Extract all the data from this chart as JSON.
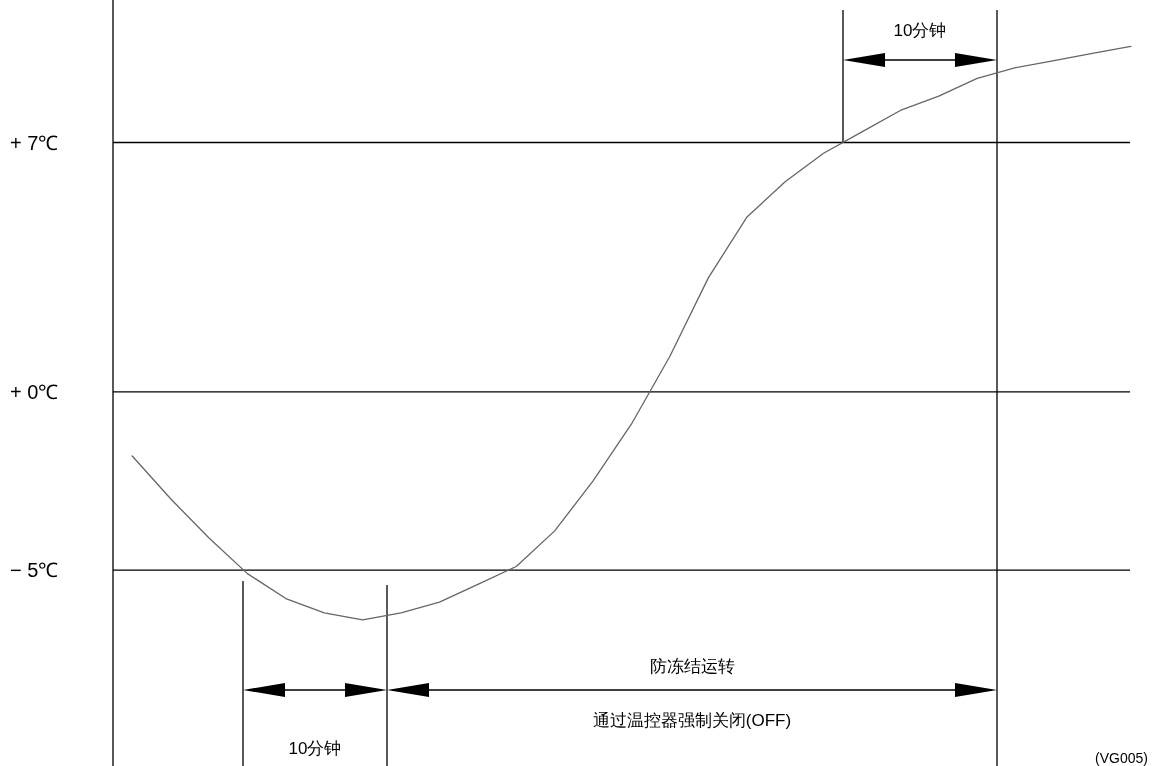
{
  "chart_data": {
    "type": "line",
    "categories": [
      null,
      null,
      null,
      null,
      null,
      null,
      null,
      null,
      null,
      null,
      null,
      null,
      null,
      null,
      null,
      null,
      null,
      null,
      null,
      null,
      null,
      null,
      null,
      null,
      null,
      null,
      null
    ],
    "ylim": [
      -10.5,
      11
    ],
    "yticks": [
      {
        "value": 7,
        "label": "+ 7℃"
      },
      {
        "value": 0,
        "label": "+ 0℃"
      },
      {
        "value": -5,
        "label": "− 5℃"
      }
    ],
    "tick_labels": "y",
    "line_style": "solid",
    "ref_lines": [
      {
        "axis": "y",
        "value": 7,
        "color": "#000000"
      },
      {
        "axis": "y",
        "value": 0,
        "color": "#000000"
      },
      {
        "axis": "y",
        "value": -5,
        "color": "#000000"
      }
    ],
    "series": [
      {
        "color": "#666666",
        "values": [
          -1.8,
          -3.0,
          -4.1,
          -5.1,
          -5.8,
          -6.2,
          -6.4,
          -6.2,
          -5.9,
          -5.4,
          -4.9,
          -3.9,
          -2.5,
          -0.9,
          1.0,
          3.2,
          4.9,
          5.9,
          6.7,
          7.3,
          7.9,
          8.3,
          8.8,
          9.1,
          9.3,
          9.5,
          9.7
        ]
      }
    ],
    "annotations": [
      "10分钟",
      "10分钟",
      "防冻结运转",
      "通过温控器强制关闭(OFF)",
      "(VG005)"
    ]
  }
}
